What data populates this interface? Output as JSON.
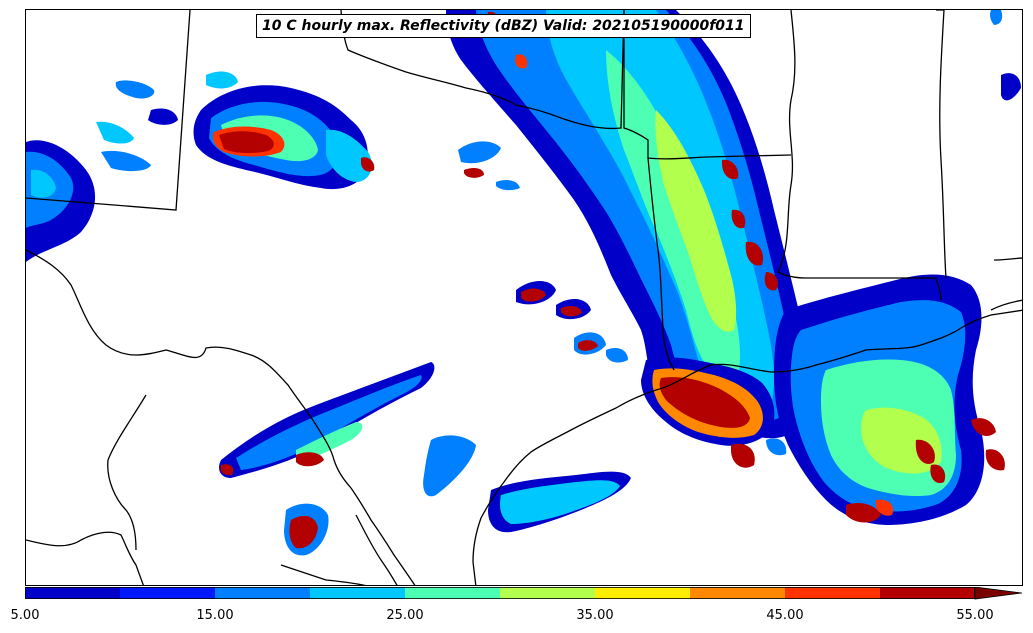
{
  "title": "10 C hourly max. Reflectivity (dBZ) Valid: 202105190000f011",
  "colorbar": {
    "levels": [
      5,
      10,
      15,
      20,
      25,
      30,
      35,
      40,
      45,
      50,
      55
    ],
    "colors": [
      "#0000c8",
      "#0019ff",
      "#0080ff",
      "#00c8ff",
      "#4dffb3",
      "#b3ff4d",
      "#ffee00",
      "#ff8800",
      "#ff3300",
      "#b30000"
    ],
    "extend_color": "#7a0000",
    "tick_labels": [
      "5.00",
      "15.00",
      "25.00",
      "35.00",
      "45.00",
      "55.00"
    ]
  }
}
